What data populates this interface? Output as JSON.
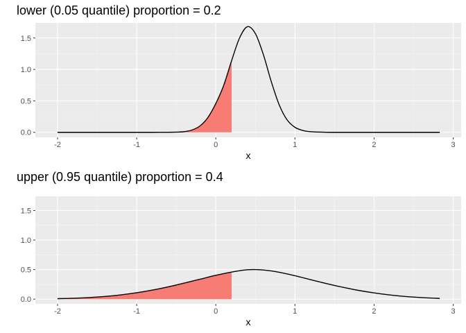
{
  "chart_data": [
    {
      "type": "area",
      "title": "lower (0.05 quantile) proportion = 0.2",
      "xlabel": "x",
      "ylabel": "",
      "x_ticks": [
        -2,
        -1,
        0,
        1,
        2,
        3
      ],
      "y_ticks": [
        0.0,
        0.5,
        1.0,
        1.5
      ],
      "y_tick_labels": [
        "0.0",
        "0.5",
        "1.0",
        "1.5"
      ],
      "xlim": [
        -2.28,
        3.1
      ],
      "ylim": [
        -0.08,
        1.74
      ],
      "grid": true,
      "legend": "none",
      "series": [
        {
          "kind": "density-line",
          "x": [
            -2.0,
            -1.8,
            -1.6,
            -1.4,
            -1.2,
            -1.0,
            -0.8,
            -0.6,
            -0.5,
            -0.4,
            -0.3,
            -0.2,
            -0.1,
            0.0,
            0.1,
            0.2,
            0.3,
            0.4,
            0.5,
            0.6,
            0.7,
            0.8,
            0.9,
            1.0,
            1.1,
            1.2,
            1.4,
            1.6,
            1.8,
            2.0,
            2.4,
            2.83
          ],
          "y": [
            0.0,
            0.0,
            0.0,
            0.0,
            0.0,
            0.0,
            0.0,
            0.001,
            0.003,
            0.011,
            0.037,
            0.102,
            0.236,
            0.458,
            0.748,
            1.14,
            1.5,
            1.68,
            1.57,
            1.24,
            0.81,
            0.44,
            0.2,
            0.08,
            0.03,
            0.01,
            0.001,
            0.0,
            0.0,
            0.0,
            0.0,
            0.0
          ],
          "color": "#000000"
        },
        {
          "kind": "shaded-region",
          "x_end": 0.2,
          "color": "#f8766d"
        }
      ]
    },
    {
      "type": "area",
      "title": "upper (0.95 quantile) proportion = 0.4",
      "xlabel": "x",
      "ylabel": "",
      "x_ticks": [
        -2,
        -1,
        0,
        1,
        2,
        3
      ],
      "y_ticks": [
        0.0,
        0.5,
        1.0,
        1.5
      ],
      "y_tick_labels": [
        "0.0",
        "0.5",
        "1.0",
        "1.5"
      ],
      "xlim": [
        -2.28,
        3.1
      ],
      "ylim": [
        -0.08,
        1.74
      ],
      "grid": true,
      "legend": "none",
      "series": [
        {
          "kind": "density-line",
          "x": [
            -2.0,
            -1.8,
            -1.6,
            -1.4,
            -1.2,
            -1.0,
            -0.8,
            -0.6,
            -0.4,
            -0.2,
            0.0,
            0.2,
            0.4,
            0.6,
            0.8,
            1.0,
            1.2,
            1.4,
            1.6,
            1.8,
            2.0,
            2.2,
            2.4,
            2.6,
            2.83
          ],
          "y": [
            0.008,
            0.015,
            0.027,
            0.045,
            0.072,
            0.108,
            0.154,
            0.209,
            0.271,
            0.337,
            0.403,
            0.458,
            0.497,
            0.493,
            0.455,
            0.396,
            0.329,
            0.263,
            0.202,
            0.149,
            0.105,
            0.07,
            0.044,
            0.026,
            0.012
          ],
          "color": "#000000"
        },
        {
          "kind": "shaded-region",
          "x_end": 0.2,
          "color": "#f8766d"
        }
      ]
    }
  ],
  "colors": {
    "panel_background": "#ebebeb",
    "grid_major": "#ffffff",
    "grid_minor": "#f5f5f5",
    "shade": "#f8766d",
    "line": "#000000"
  }
}
